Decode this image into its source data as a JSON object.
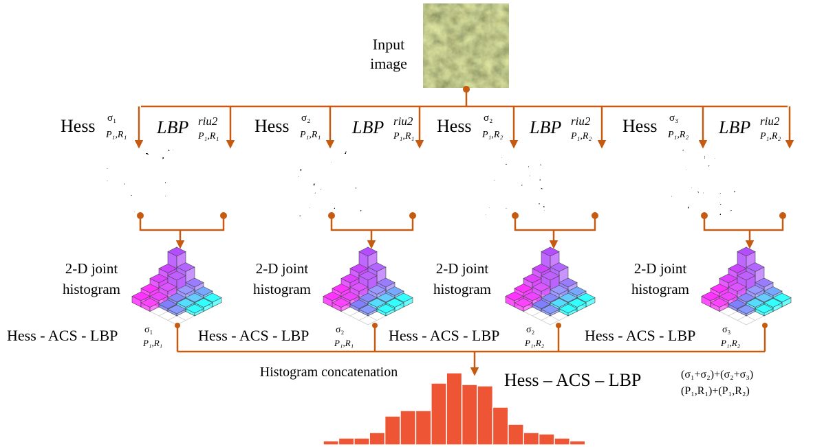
{
  "input": {
    "label_lines": [
      "Input",
      "image"
    ]
  },
  "branches": [
    {
      "hess": {
        "name": "Hess",
        "sigma": "σ₁",
        "params": "P₁,R₁"
      },
      "lbp": {
        "name": "LBP",
        "sup": "riu2",
        "params": "P₁,R₁"
      },
      "joint_lines": [
        "2-D joint",
        "histogram"
      ],
      "descriptor": {
        "name": "Hess - ACS - LBP",
        "sigma": "σ₁",
        "params": "P₁,R₁"
      }
    },
    {
      "hess": {
        "name": "Hess",
        "sigma": "σ₂",
        "params": "P₁,R₁"
      },
      "lbp": {
        "name": "LBP",
        "sup": "riu2",
        "params": "P₁,R₁"
      },
      "joint_lines": [
        "2-D joint",
        "histogram"
      ],
      "descriptor": {
        "name": "Hess - ACS - LBP",
        "sigma": "σ₂",
        "params": "P₁,R₁"
      }
    },
    {
      "hess": {
        "name": "Hess",
        "sigma": "σ₂",
        "params": "P₁,R₂"
      },
      "lbp": {
        "name": "LBP",
        "sup": "riu2",
        "params": "P₁,R₂"
      },
      "joint_lines": [
        "2-D joint",
        "histogram"
      ],
      "descriptor": {
        "name": "Hess - ACS - LBP",
        "sigma": "σ₂",
        "params": "P₁,R₂"
      }
    },
    {
      "hess": {
        "name": "Hess",
        "sigma": "σ₃",
        "params": "P₁,R₂"
      },
      "lbp": {
        "name": "LBP",
        "sup": "riu2",
        "params": "P₁,R₂"
      },
      "joint_lines": [
        "2-D joint",
        "histogram"
      ],
      "descriptor": {
        "name": "Hess - ACS - LBP",
        "sigma": "σ₃",
        "params": "P₁,R₂"
      }
    }
  ],
  "concatenation": "Histogram concatenation",
  "final": {
    "name": "Hess – ACS – LBP",
    "sup": "(σ₁+σ₂)+(σ₂+σ₃)",
    "sub": "(P₁,R₁)+(P₁,R₂)"
  }
}
